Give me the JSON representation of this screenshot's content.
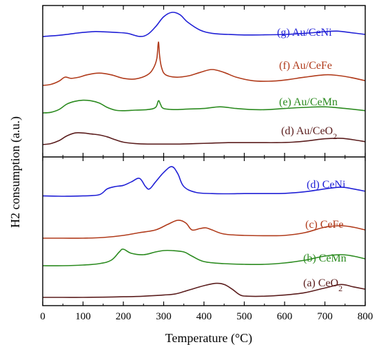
{
  "chart_data": {
    "type": "line",
    "xlabel": "Temperature (°C)",
    "ylabel": "H2 consumption (a.u.)",
    "xlim": [
      0,
      800
    ],
    "xticks": [
      0,
      100,
      200,
      300,
      400,
      500,
      600,
      700,
      800
    ],
    "panels": [
      {
        "position": "top",
        "series": [
          {
            "label": "(g) Au/CeNi",
            "color": "#1f1fd6",
            "x": [
              0,
              10,
              20,
              40,
              60,
              80,
              100,
              130,
              150,
              180,
              210,
              240,
              260,
              280,
              300,
              320,
              340,
              360,
              390,
              420,
              460,
              500,
              550,
              600,
              650,
              700,
              730,
              760,
              800
            ],
            "y": [
              0.8,
              0.84,
              0.86,
              0.92,
              1.0,
              1.1,
              1.18,
              1.26,
              1.24,
              1.18,
              1.1,
              0.82,
              1.0,
              1.7,
              2.6,
              3.0,
              2.8,
              2.1,
              1.4,
              1.1,
              1.0,
              0.95,
              0.96,
              1.0,
              1.1,
              1.25,
              1.3,
              1.18,
              1.0
            ]
          },
          {
            "label": "(f) Au/CeFe",
            "color": "#b03a1a",
            "x": [
              0,
              20,
              40,
              55,
              70,
              90,
              110,
              140,
              170,
              200,
              230,
              260,
              275,
              283,
              287,
              290,
              295,
              305,
              330,
              360,
              390,
              420,
              450,
              480,
              520,
              560,
              600,
              650,
              700,
              730,
              760,
              800
            ],
            "y": [
              0.0,
              0.08,
              0.35,
              0.7,
              0.6,
              0.7,
              0.9,
              1.05,
              0.9,
              0.6,
              0.55,
              0.9,
              1.5,
              2.3,
              3.7,
              2.5,
              1.5,
              0.9,
              0.7,
              0.8,
              1.1,
              1.35,
              1.1,
              0.7,
              0.4,
              0.35,
              0.45,
              0.7,
              0.9,
              0.85,
              0.7,
              0.4
            ]
          },
          {
            "label": "(e) Au/CeMn",
            "color": "#2a8a1e",
            "x": [
              0,
              20,
              40,
              60,
              80,
              100,
              120,
              140,
              160,
              180,
              200,
              230,
              260,
              280,
              287,
              292,
              300,
              330,
              360,
              400,
              440,
              480,
              520,
              560,
              600,
              650,
              700,
              750,
              800
            ],
            "y": [
              0.0,
              0.05,
              0.3,
              0.8,
              1.05,
              1.15,
              1.1,
              0.9,
              0.5,
              0.25,
              0.2,
              0.25,
              0.3,
              0.5,
              1.1,
              0.8,
              0.4,
              0.3,
              0.35,
              0.4,
              0.55,
              0.4,
              0.3,
              0.3,
              0.4,
              0.5,
              0.55,
              0.4,
              0.2
            ]
          },
          {
            "label": "(d) Au/CeO2",
            "color": "#5a1c1c",
            "x": [
              0,
              20,
              40,
              60,
              80,
              100,
              120,
              140,
              160,
              180,
              200,
              230,
              260,
              290,
              310,
              340,
              380,
              420,
              460,
              500,
              540,
              580,
              620,
              660,
              700,
              740,
              770,
              800
            ],
            "y": [
              0.0,
              0.1,
              0.4,
              0.9,
              1.2,
              1.2,
              1.1,
              1.0,
              0.8,
              0.5,
              0.25,
              0.1,
              0.05,
              0.05,
              0.05,
              0.05,
              0.1,
              0.15,
              0.2,
              0.2,
              0.2,
              0.2,
              0.25,
              0.4,
              0.6,
              0.65,
              0.5,
              0.3
            ]
          }
        ]
      },
      {
        "position": "bottom",
        "series": [
          {
            "label": "(d) CeNi",
            "color": "#1f1fd6",
            "x": [
              0,
              30,
              60,
              100,
              140,
              160,
              180,
              200,
              220,
              240,
              255,
              265,
              280,
              300,
              320,
              335,
              350,
              380,
              420,
              460,
              500,
              550,
              600,
              650,
              700,
              740,
              770,
              800
            ],
            "y": [
              0.2,
              0.18,
              0.17,
              0.2,
              0.3,
              0.8,
              1.0,
              1.1,
              1.4,
              1.7,
              1.0,
              0.8,
              1.4,
              2.2,
              2.7,
              2.1,
              1.0,
              0.5,
              0.4,
              0.38,
              0.4,
              0.4,
              0.42,
              0.55,
              0.8,
              0.95,
              0.8,
              0.6
            ]
          },
          {
            "label": "(c) CeFe",
            "color": "#b03a1a",
            "x": [
              0,
              50,
              100,
              150,
              200,
              240,
              280,
              310,
              335,
              355,
              370,
              390,
              405,
              420,
              450,
              500,
              550,
              600,
              650,
              700,
              740,
              770,
              800
            ],
            "y": [
              0.0,
              0.0,
              0.0,
              0.05,
              0.2,
              0.4,
              0.6,
              1.0,
              1.3,
              1.1,
              0.6,
              0.7,
              0.75,
              0.6,
              0.3,
              0.2,
              0.18,
              0.2,
              0.4,
              0.8,
              0.9,
              0.8,
              0.6
            ]
          },
          {
            "label": "(b) CeMn",
            "color": "#2a8a1e",
            "x": [
              0,
              50,
              100,
              140,
              170,
              190,
              200,
              220,
              250,
              280,
              300,
              320,
              350,
              370,
              400,
              450,
              500,
              550,
              600,
              650,
              700,
              740,
              770,
              800
            ],
            "y": [
              0.0,
              0.0,
              0.05,
              0.15,
              0.4,
              1.0,
              1.2,
              0.9,
              0.8,
              1.0,
              1.1,
              1.1,
              1.0,
              0.7,
              0.3,
              0.15,
              0.1,
              0.1,
              0.2,
              0.4,
              0.7,
              0.8,
              0.7,
              0.5
            ]
          },
          {
            "label": "(a) CeO2",
            "color": "#5a1c1c",
            "x": [
              0,
              50,
              100,
              150,
              200,
              250,
              300,
              330,
              360,
              400,
              430,
              450,
              470,
              490,
              510,
              550,
              600,
              650,
              700,
              740,
              770,
              800
            ],
            "y": [
              0.0,
              0.0,
              0.0,
              0.02,
              0.05,
              0.1,
              0.2,
              0.3,
              0.6,
              1.0,
              1.2,
              1.1,
              0.7,
              0.2,
              0.1,
              0.1,
              0.2,
              0.4,
              0.8,
              1.1,
              0.9,
              0.7
            ]
          }
        ]
      }
    ]
  }
}
